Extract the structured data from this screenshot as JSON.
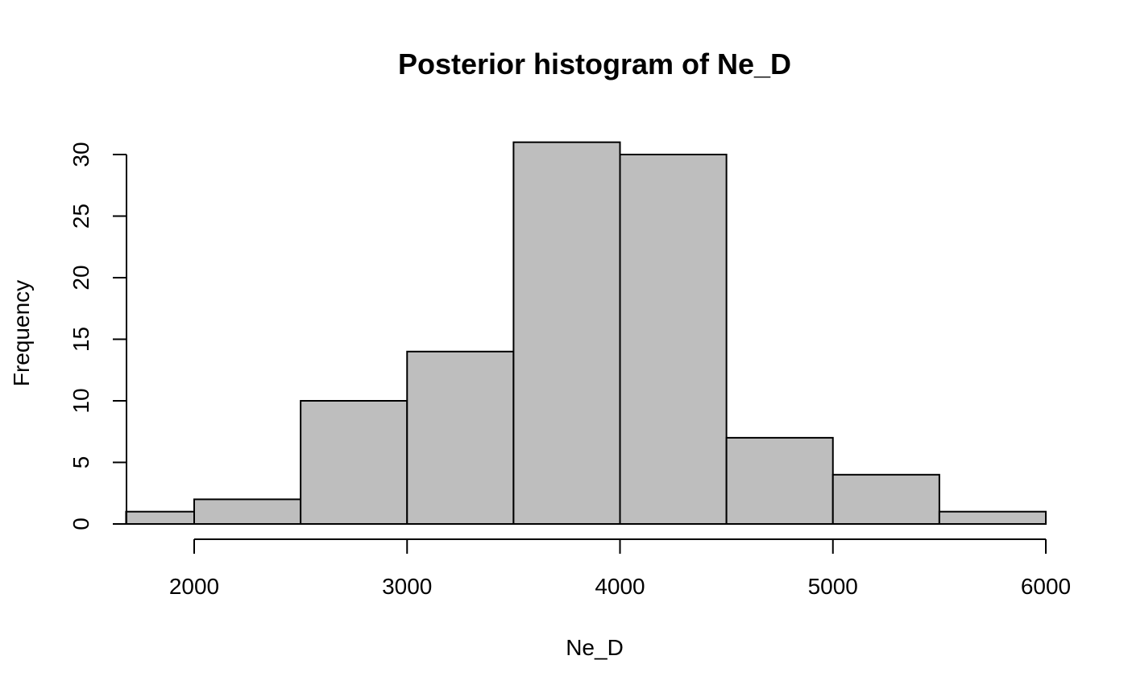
{
  "chart_data": {
    "type": "bar",
    "title": "Posterior histogram of Ne_D",
    "xlabel": "Ne_D",
    "ylabel": "Frequency",
    "bins": [
      {
        "start": 1680,
        "end": 2000,
        "count": 1
      },
      {
        "start": 2000,
        "end": 2500,
        "count": 2
      },
      {
        "start": 2500,
        "end": 3000,
        "count": 10
      },
      {
        "start": 3000,
        "end": 3500,
        "count": 14
      },
      {
        "start": 3500,
        "end": 4000,
        "count": 31
      },
      {
        "start": 4000,
        "end": 4500,
        "count": 30
      },
      {
        "start": 4500,
        "end": 5000,
        "count": 7
      },
      {
        "start": 5000,
        "end": 5500,
        "count": 4
      },
      {
        "start": 5500,
        "end": 6000,
        "count": 1
      }
    ],
    "xticks": [
      2000,
      3000,
      4000,
      5000,
      6000
    ],
    "yticks": [
      0,
      5,
      10,
      15,
      20,
      25,
      30
    ],
    "xlim": [
      1680,
      6000
    ],
    "ylim": [
      0,
      30
    ],
    "grid": false,
    "bar_color": "#bebebe"
  }
}
